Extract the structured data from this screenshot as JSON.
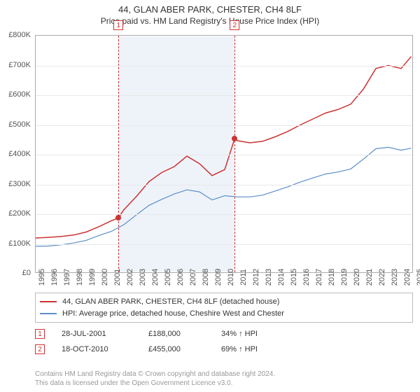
{
  "title": "44, GLAN ABER PARK, CHESTER, CH4 8LF",
  "subtitle": "Price paid vs. HM Land Registry's House Price Index (HPI)",
  "chart": {
    "type": "line",
    "background_color": "#ffffff",
    "grid_color": "#e8e8e8",
    "axis_color": "#aaaaaa",
    "label_fontsize": 11,
    "x_min_year": 1995,
    "x_max_year": 2025,
    "ylim": [
      0,
      800000
    ],
    "ytick_step": 100000,
    "y_ticks": [
      "£0",
      "£100K",
      "£200K",
      "£300K",
      "£400K",
      "£500K",
      "£600K",
      "£700K",
      "£800K"
    ],
    "x_years": [
      1995,
      1996,
      1997,
      1998,
      1999,
      2000,
      2001,
      2002,
      2003,
      2004,
      2005,
      2006,
      2007,
      2008,
      2009,
      2010,
      2011,
      2012,
      2013,
      2014,
      2015,
      2016,
      2017,
      2018,
      2019,
      2020,
      2021,
      2022,
      2023,
      2024,
      2025
    ],
    "shaded_range": {
      "start_year": 2001.57,
      "end_year": 2010.8,
      "color": "#eef3f9"
    },
    "markers": [
      {
        "id": "1",
        "year": 2001.57,
        "price": 188000
      },
      {
        "id": "2",
        "year": 2010.8,
        "price": 455000
      }
    ],
    "series": [
      {
        "name": "price_paid",
        "label": "44, GLAN ABER PARK, CHESTER, CH4 8LF (detached house)",
        "color": "#cc3333",
        "line_width": 1.5,
        "points": [
          [
            1995,
            120000
          ],
          [
            1996,
            122000
          ],
          [
            1997,
            125000
          ],
          [
            1998,
            130000
          ],
          [
            1999,
            140000
          ],
          [
            2000,
            158000
          ],
          [
            2001,
            178000
          ],
          [
            2001.57,
            188000
          ],
          [
            2002,
            215000
          ],
          [
            2003,
            260000
          ],
          [
            2004,
            310000
          ],
          [
            2005,
            340000
          ],
          [
            2006,
            360000
          ],
          [
            2007,
            395000
          ],
          [
            2008,
            370000
          ],
          [
            2009,
            330000
          ],
          [
            2010,
            350000
          ],
          [
            2010.8,
            455000
          ],
          [
            2011,
            447000
          ],
          [
            2012,
            440000
          ],
          [
            2013,
            445000
          ],
          [
            2014,
            460000
          ],
          [
            2015,
            478000
          ],
          [
            2016,
            500000
          ],
          [
            2017,
            520000
          ],
          [
            2018,
            540000
          ],
          [
            2019,
            552000
          ],
          [
            2020,
            570000
          ],
          [
            2021,
            620000
          ],
          [
            2022,
            690000
          ],
          [
            2023,
            700000
          ],
          [
            2024,
            690000
          ],
          [
            2024.8,
            730000
          ]
        ]
      },
      {
        "name": "hpi",
        "label": "HPI: Average price, detached house, Cheshire West and Chester",
        "color": "#5b8fc7",
        "line_width": 1.2,
        "points": [
          [
            1995,
            92000
          ],
          [
            1996,
            93000
          ],
          [
            1997,
            97000
          ],
          [
            1998,
            103000
          ],
          [
            1999,
            112000
          ],
          [
            2000,
            128000
          ],
          [
            2001,
            142000
          ],
          [
            2002,
            165000
          ],
          [
            2003,
            198000
          ],
          [
            2004,
            230000
          ],
          [
            2005,
            250000
          ],
          [
            2006,
            268000
          ],
          [
            2007,
            282000
          ],
          [
            2008,
            275000
          ],
          [
            2009,
            248000
          ],
          [
            2010,
            262000
          ],
          [
            2011,
            258000
          ],
          [
            2012,
            258000
          ],
          [
            2013,
            264000
          ],
          [
            2014,
            278000
          ],
          [
            2015,
            292000
          ],
          [
            2016,
            308000
          ],
          [
            2017,
            322000
          ],
          [
            2018,
            335000
          ],
          [
            2019,
            342000
          ],
          [
            2020,
            352000
          ],
          [
            2021,
            385000
          ],
          [
            2022,
            420000
          ],
          [
            2023,
            425000
          ],
          [
            2024,
            415000
          ],
          [
            2024.8,
            422000
          ]
        ]
      }
    ]
  },
  "legend": {
    "rows": [
      {
        "color": "#cc3333",
        "label": "44, GLAN ABER PARK, CHESTER, CH4 8LF (detached house)"
      },
      {
        "color": "#5b8fc7",
        "label": "HPI: Average price, detached house, Cheshire West and Chester"
      }
    ]
  },
  "sales": [
    {
      "id": "1",
      "date": "28-JUL-2001",
      "price": "£188,000",
      "hpi": "34% ↑ HPI"
    },
    {
      "id": "2",
      "date": "18-OCT-2010",
      "price": "£455,000",
      "hpi": "69% ↑ HPI"
    }
  ],
  "footer": {
    "line1": "Contains HM Land Registry data © Crown copyright and database right 2024.",
    "line2": "This data is licensed under the Open Government Licence v3.0."
  }
}
